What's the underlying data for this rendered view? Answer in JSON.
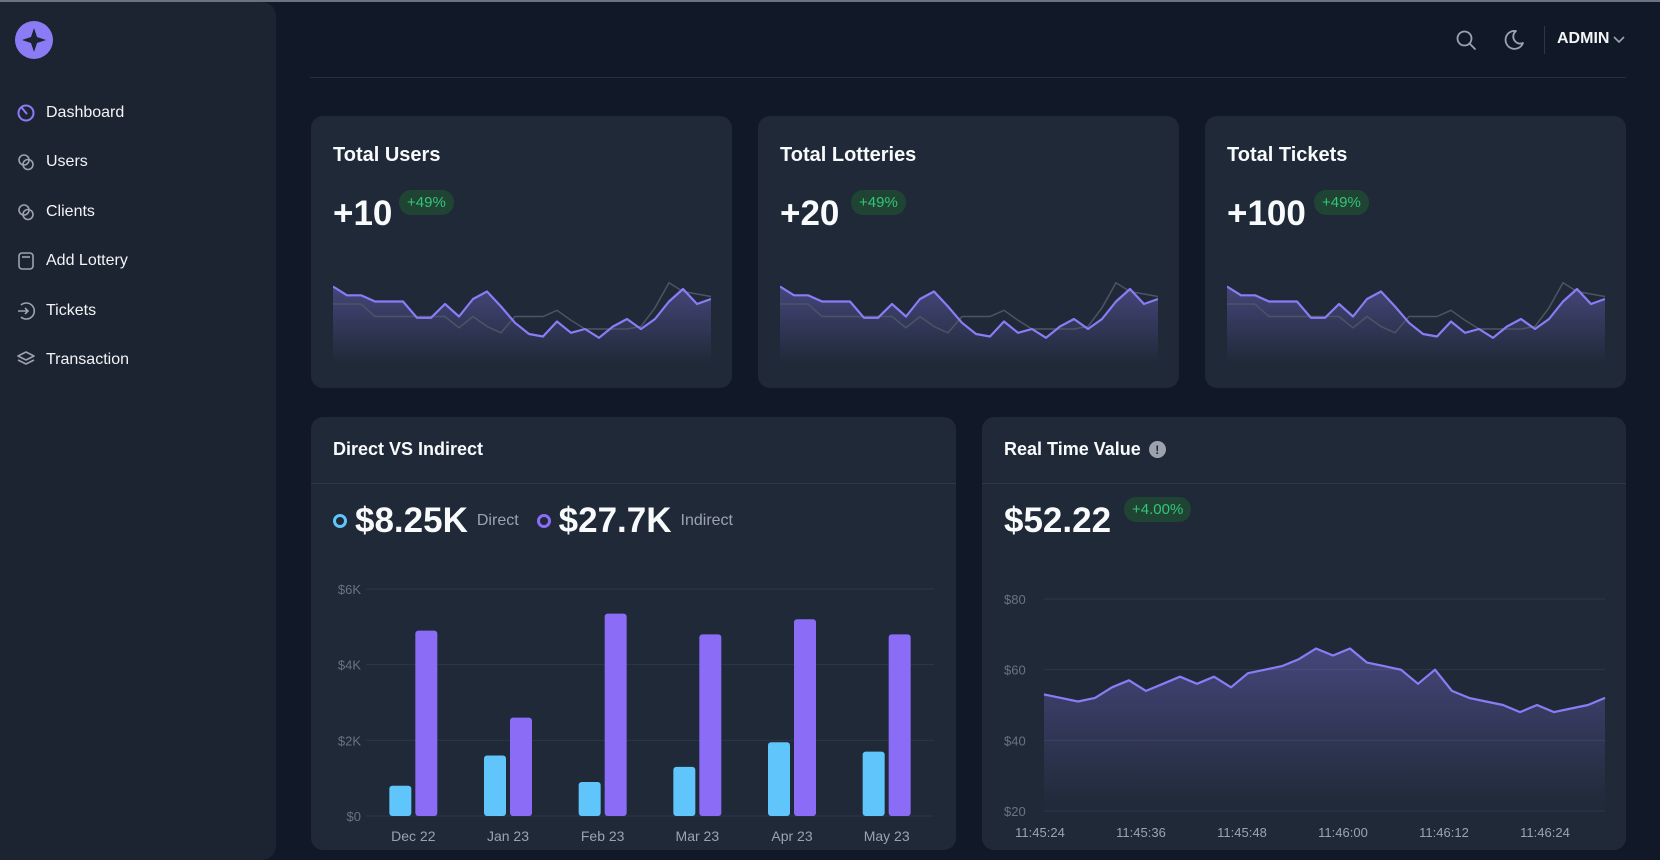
{
  "sidebar": {
    "items": [
      {
        "label": "Dashboard",
        "icon": "dashboard-icon",
        "active": true
      },
      {
        "label": "Users",
        "icon": "users-icon",
        "active": false
      },
      {
        "label": "Clients",
        "icon": "clients-icon",
        "active": false
      },
      {
        "label": "Add Lottery",
        "icon": "add-lottery-icon",
        "active": false
      },
      {
        "label": "Tickets",
        "icon": "tickets-icon",
        "active": false
      },
      {
        "label": "Transaction",
        "icon": "transaction-icon",
        "active": false
      }
    ]
  },
  "topbar": {
    "user_label": "ADMIN"
  },
  "colors": {
    "accent": "#8b7cf6",
    "direct": "#60c5fa",
    "indirect": "#8b6cf6",
    "success": "#34c47a"
  },
  "stats": [
    {
      "title": "Total Users",
      "value": "+10",
      "change": "+49%"
    },
    {
      "title": "Total Lotteries",
      "value": "+20",
      "change": "+49%"
    },
    {
      "title": "Total Tickets",
      "value": "+100",
      "change": "+49%"
    }
  ],
  "sparkline_data": {
    "primary": [
      62,
      55,
      55,
      50,
      50,
      50,
      37,
      37,
      48,
      38,
      52,
      58,
      46,
      33,
      24,
      22,
      34,
      25,
      28,
      21,
      30,
      36,
      28,
      36,
      50,
      60,
      48,
      52
    ],
    "secondary": [
      48,
      48,
      48,
      38,
      38,
      38,
      38,
      38,
      38,
      29,
      38,
      30,
      25,
      38,
      38,
      38,
      43,
      35,
      28,
      28,
      28,
      28,
      30,
      45,
      65,
      58,
      56,
      54
    ]
  },
  "direct_indirect": {
    "title": "Direct VS Indirect",
    "direct_value": "$8.25K",
    "direct_label": "Direct",
    "indirect_value": "$27.7K",
    "indirect_label": "Indirect"
  },
  "realtime": {
    "title": "Real Time Value",
    "value": "$52.22",
    "change": "+4.00%"
  },
  "chart_data": [
    {
      "type": "bar",
      "categories": [
        "Dec 22",
        "Jan 23",
        "Feb 23",
        "Mar 23",
        "Apr 23",
        "May 23"
      ],
      "series": [
        {
          "name": "Direct",
          "values": [
            800,
            1600,
            900,
            1300,
            1950,
            1700
          ]
        },
        {
          "name": "Indirect",
          "values": [
            4900,
            2600,
            5350,
            4800,
            5200,
            4800
          ]
        }
      ],
      "yticks": [
        "$0",
        "$2K",
        "$4K",
        "$6K"
      ],
      "ylim": [
        0,
        6000
      ]
    },
    {
      "type": "area",
      "x_labels": [
        "11:45:24",
        "11:45:36",
        "11:45:48",
        "11:46:00",
        "11:46:12",
        "11:46:24"
      ],
      "values": [
        53,
        52,
        51,
        52,
        55,
        57,
        54,
        56,
        58,
        56,
        58,
        55,
        59,
        60,
        61,
        63,
        66,
        64,
        66,
        62,
        61,
        60,
        56,
        60,
        54,
        52,
        51,
        50,
        48,
        50,
        48,
        49,
        50,
        52
      ],
      "yticks": [
        "$20",
        "$40",
        "$60",
        "$80"
      ],
      "ylim": [
        20,
        80
      ]
    }
  ]
}
